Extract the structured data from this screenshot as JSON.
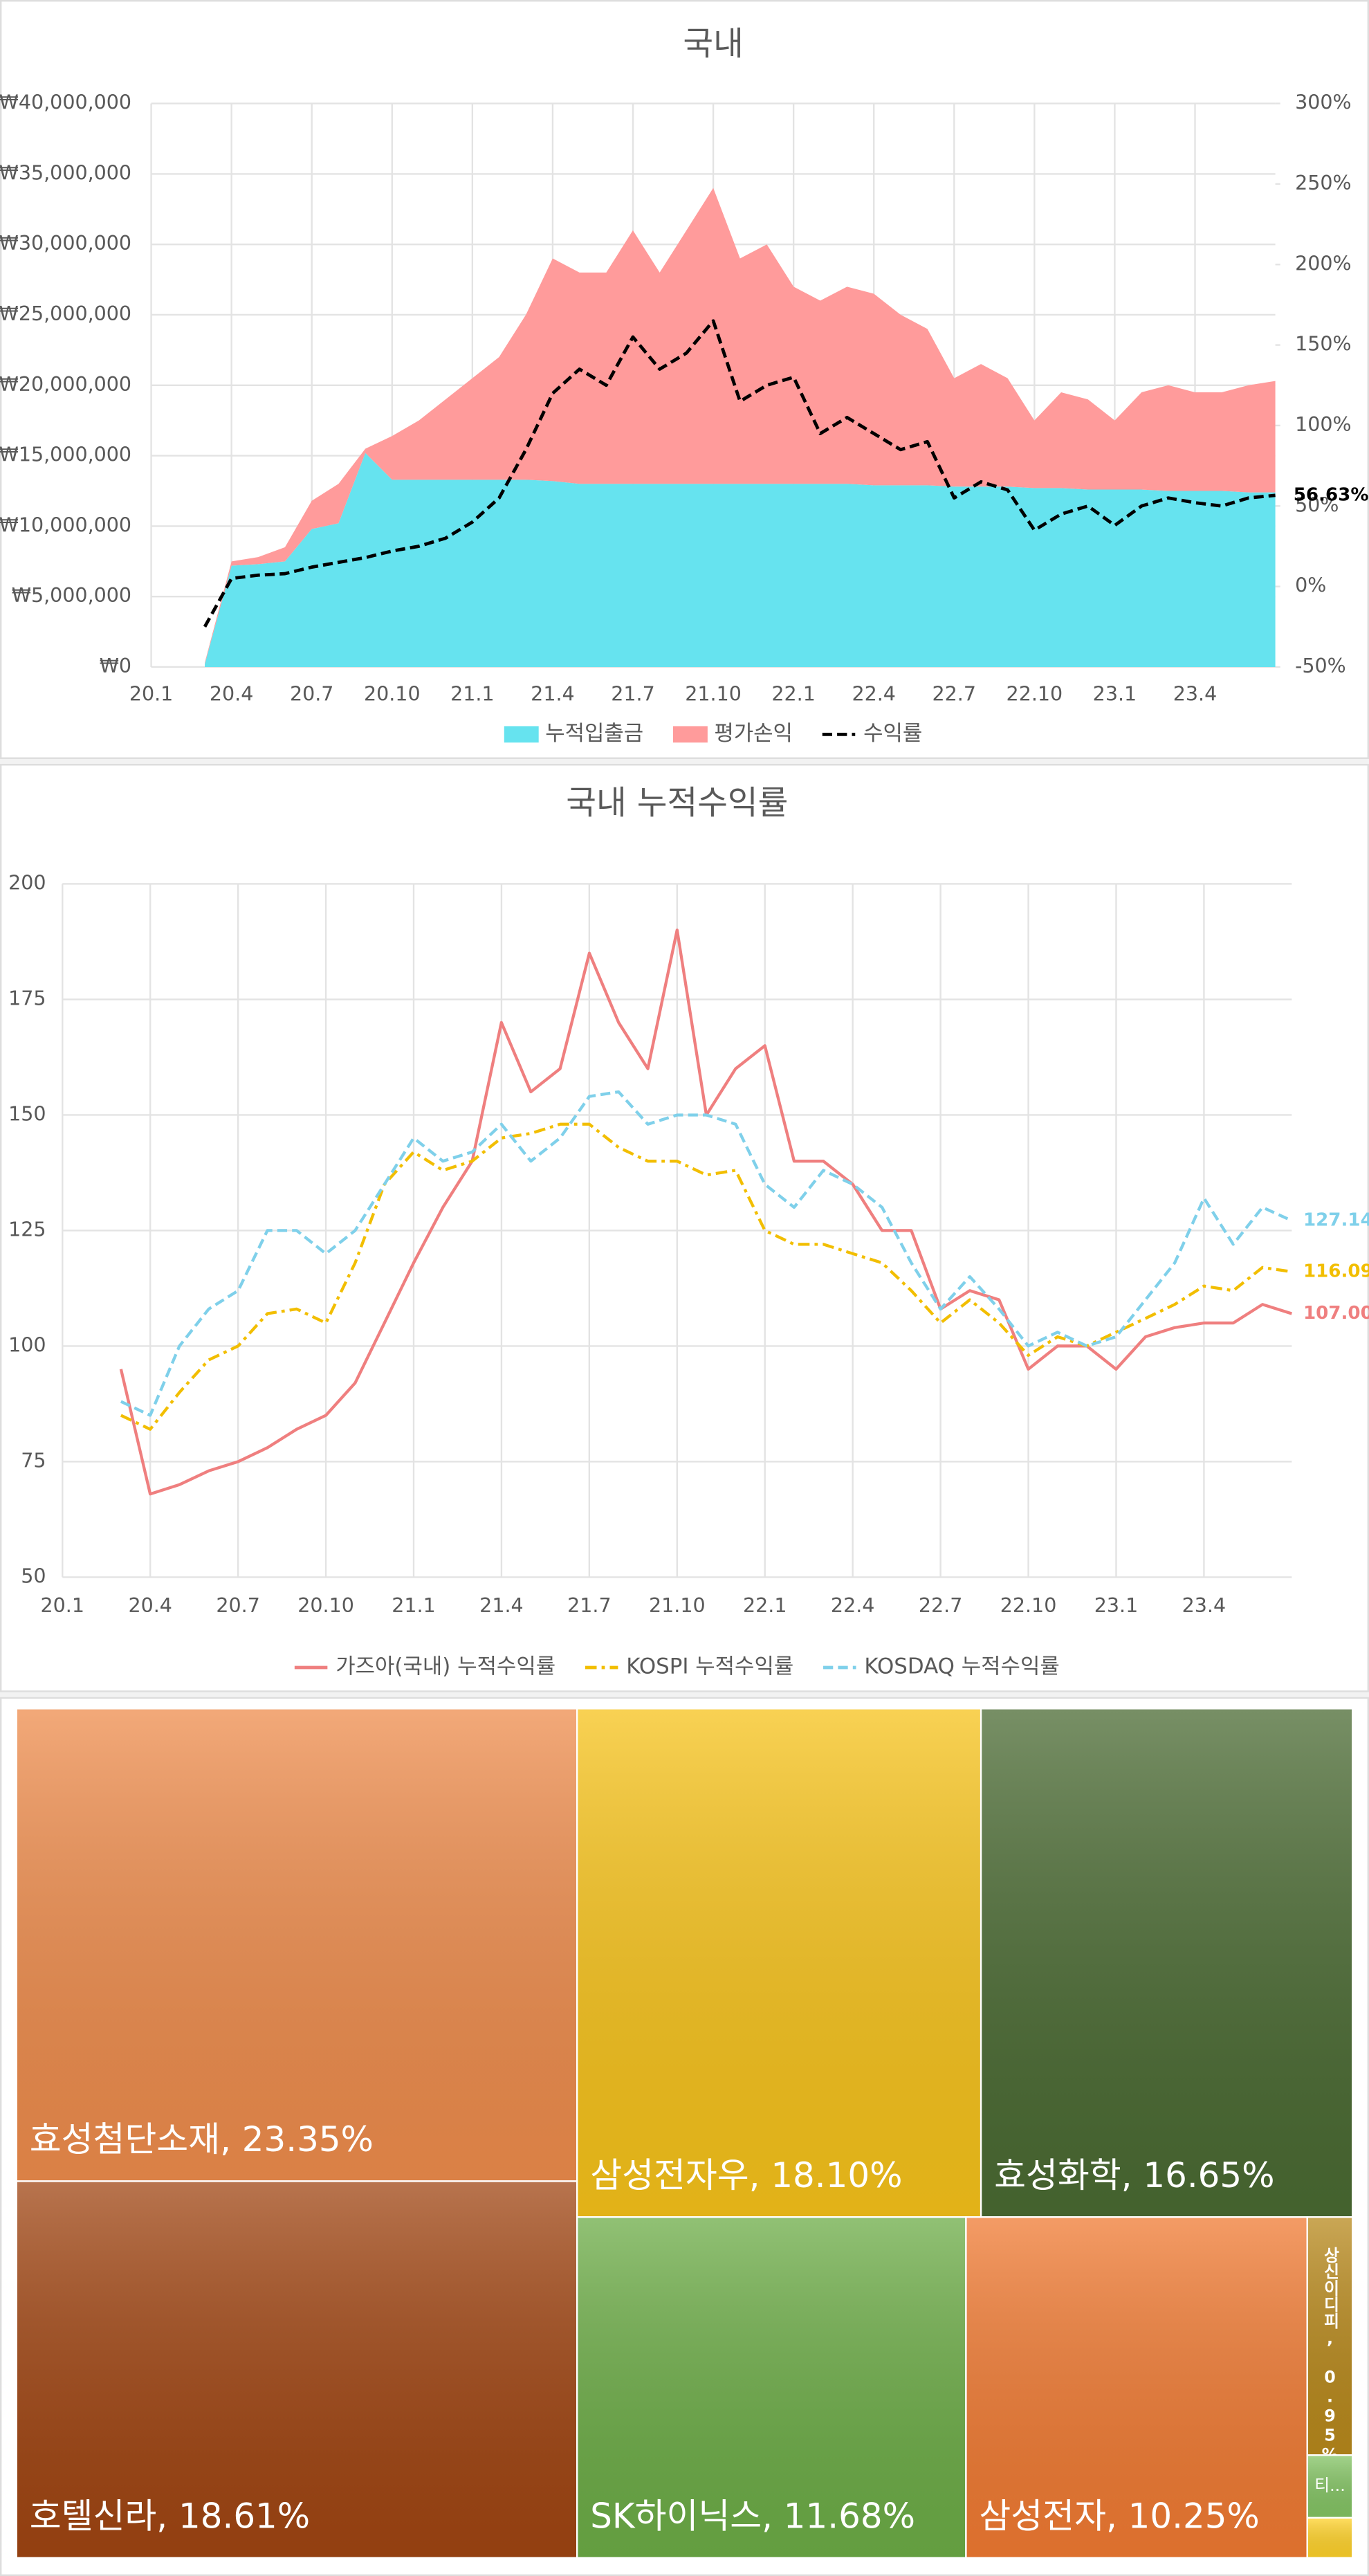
{
  "chart_data": [
    {
      "type": "area",
      "title": "국내",
      "x": [
        "20.3",
        "20.4",
        "20.5",
        "20.6",
        "20.7",
        "20.8",
        "20.9",
        "20.10",
        "20.11",
        "20.12",
        "21.1",
        "21.2",
        "21.3",
        "21.4",
        "21.5",
        "21.6",
        "21.7",
        "21.8",
        "21.9",
        "21.10",
        "21.11",
        "21.12",
        "22.1",
        "22.2",
        "22.3",
        "22.4",
        "22.5",
        "22.6",
        "22.7",
        "22.8",
        "22.9",
        "22.10",
        "22.11",
        "22.12",
        "23.1",
        "23.2",
        "23.3",
        "23.4",
        "23.5",
        "23.6",
        "23.7"
      ],
      "xlim": [
        "20.1",
        "23.7"
      ],
      "xticks": [
        "20.1",
        "20.4",
        "20.7",
        "20.10",
        "21.1",
        "21.4",
        "21.7",
        "21.10",
        "22.1",
        "22.4",
        "22.7",
        "22.10",
        "23.1",
        "23.4"
      ],
      "ylim": [
        0,
        40000000
      ],
      "yticks": [
        {
          "value": 0,
          "label": "₩0"
        },
        {
          "value": 5000000,
          "label": "₩5,000,000"
        },
        {
          "value": 10000000,
          "label": "₩10,000,000"
        },
        {
          "value": 15000000,
          "label": "₩15,000,000"
        },
        {
          "value": 20000000,
          "label": "₩20,000,000"
        },
        {
          "value": 25000000,
          "label": "₩25,000,000"
        },
        {
          "value": 30000000,
          "label": "₩30,000,000"
        },
        {
          "value": 35000000,
          "label": "₩35,000,000"
        },
        {
          "value": 40000000,
          "label": "₩40,000,000"
        }
      ],
      "y2lim": [
        -50,
        300
      ],
      "y2ticks": [
        {
          "value": -50,
          "label": "-50%"
        },
        {
          "value": 0,
          "label": "0%"
        },
        {
          "value": 50,
          "label": "50%"
        },
        {
          "value": 100,
          "label": "100%"
        },
        {
          "value": 150,
          "label": "150%"
        },
        {
          "value": 200,
          "label": "200%"
        },
        {
          "value": 250,
          "label": "250%"
        },
        {
          "value": 300,
          "label": "300%"
        }
      ],
      "grid": true,
      "legend": "bottom",
      "series": [
        {
          "name": "누적입출금",
          "type": "area",
          "color": "#66e3ef",
          "values": [
            200000,
            7200000,
            7300000,
            7500000,
            9800000,
            10200000,
            15200000,
            13300000,
            13300000,
            13300000,
            13300000,
            13300000,
            13300000,
            13200000,
            13000000,
            13000000,
            13000000,
            13000000,
            13000000,
            13000000,
            13000000,
            13000000,
            13000000,
            13000000,
            13000000,
            12900000,
            12900000,
            12900000,
            12800000,
            12800000,
            12800000,
            12700000,
            12700000,
            12600000,
            12600000,
            12600000,
            12500000,
            12500000,
            12500000,
            12400000,
            12400000
          ]
        },
        {
          "name": "평가손익",
          "type": "area",
          "color": "#ff9b9b",
          "values": [
            100000,
            300000,
            500000,
            1000000,
            2000000,
            2800000,
            300000,
            3100000,
            4200000,
            5700000,
            7200000,
            8700000,
            11700000,
            15800000,
            15000000,
            15000000,
            18000000,
            15000000,
            18000000,
            21000000,
            16000000,
            17000000,
            14000000,
            13000000,
            14000000,
            13600000,
            12100000,
            11100000,
            7700000,
            8700000,
            7700000,
            4800000,
            6800000,
            6400000,
            4900000,
            6900000,
            7500000,
            7000000,
            7000000,
            7600000,
            7900000
          ]
        },
        {
          "name": "수익률",
          "type": "line",
          "axis": "y2",
          "color": "#000000",
          "line_style": "dashed",
          "values": [
            -25,
            5,
            7,
            8,
            12,
            15,
            18,
            22,
            25,
            30,
            40,
            55,
            85,
            120,
            135,
            125,
            155,
            135,
            145,
            165,
            115,
            125,
            130,
            95,
            105,
            95,
            85,
            90,
            55,
            65,
            60,
            35,
            45,
            50,
            38,
            50,
            55,
            52,
            50,
            55,
            56.63
          ],
          "end_label": "56.63%"
        }
      ]
    },
    {
      "type": "line",
      "title": "국내 누적수익률",
      "x": [
        "20.3",
        "20.4",
        "20.5",
        "20.6",
        "20.7",
        "20.8",
        "20.9",
        "20.10",
        "20.11",
        "20.12",
        "21.1",
        "21.2",
        "21.3",
        "21.4",
        "21.5",
        "21.6",
        "21.7",
        "21.8",
        "21.9",
        "21.10",
        "21.11",
        "21.12",
        "22.1",
        "22.2",
        "22.3",
        "22.4",
        "22.5",
        "22.6",
        "22.7",
        "22.8",
        "22.9",
        "22.10",
        "22.11",
        "22.12",
        "23.1",
        "23.2",
        "23.3",
        "23.4",
        "23.5",
        "23.6",
        "23.7"
      ],
      "xlim": [
        "20.1",
        "23.7"
      ],
      "xticks": [
        "20.1",
        "20.4",
        "20.7",
        "20.10",
        "21.1",
        "21.4",
        "21.7",
        "21.10",
        "22.1",
        "22.4",
        "22.7",
        "22.10",
        "23.1",
        "23.4"
      ],
      "ylim": [
        50,
        200
      ],
      "yticks": [
        50,
        75,
        100,
        125,
        150,
        175,
        200
      ],
      "grid": true,
      "legend": "bottom",
      "series": [
        {
          "name": "가즈아(국내) 누적수익률",
          "type": "line",
          "color": "#ef7f7f",
          "line_style": "solid",
          "values": [
            95,
            68,
            70,
            73,
            75,
            78,
            82,
            85,
            92,
            105,
            118,
            130,
            140,
            170,
            155,
            160,
            185,
            170,
            160,
            190,
            150,
            160,
            165,
            140,
            140,
            135,
            125,
            125,
            108,
            112,
            110,
            95,
            100,
            100,
            95,
            102,
            104,
            105,
            105,
            109,
            107
          ],
          "end_label": "107.00"
        },
        {
          "name": "KOSPI 누적수익률",
          "type": "line",
          "color": "#f2be00",
          "line_style": "dashdot",
          "values": [
            85,
            82,
            90,
            97,
            100,
            107,
            108,
            105,
            118,
            135,
            142,
            138,
            140,
            145,
            146,
            148,
            148,
            143,
            140,
            140,
            137,
            138,
            125,
            122,
            122,
            120,
            118,
            112,
            105,
            110,
            105,
            98,
            102,
            100,
            103,
            106,
            109,
            113,
            112,
            117,
            116.09
          ],
          "end_label": "116.09"
        },
        {
          "name": "KOSDAQ 누적수익률",
          "type": "line",
          "color": "#7fd0ea",
          "line_style": "dashed",
          "values": [
            88,
            85,
            100,
            108,
            112,
            125,
            125,
            120,
            125,
            135,
            145,
            140,
            142,
            148,
            140,
            145,
            154,
            155,
            148,
            150,
            150,
            148,
            135,
            130,
            138,
            135,
            130,
            118,
            108,
            115,
            108,
            100,
            103,
            100,
            102,
            110,
            118,
            132,
            122,
            130,
            127.14
          ],
          "end_label": "127.14"
        }
      ]
    },
    {
      "type": "treemap",
      "labels": [
        "효성첨단소재, 23.35%",
        "호텔신라, 18.61%",
        "삼성전자우, 18.10%",
        "효성화학, 16.65%",
        "SK하이닉스, 11.68%",
        "삼성전자, 10.25%",
        "상신이디피, 0.95%",
        "티...",
        null
      ],
      "values": [
        23.35,
        18.61,
        18.1,
        16.65,
        11.68,
        10.25,
        0.95,
        0.25,
        0.16
      ],
      "colors": [
        "#ee8c4c",
        "#a04512",
        "#f6c21a",
        "#4a6a32",
        "#6cac46",
        "#f07a32",
        "#b8891c",
        "#84c464",
        "#ffd22a"
      ]
    }
  ]
}
